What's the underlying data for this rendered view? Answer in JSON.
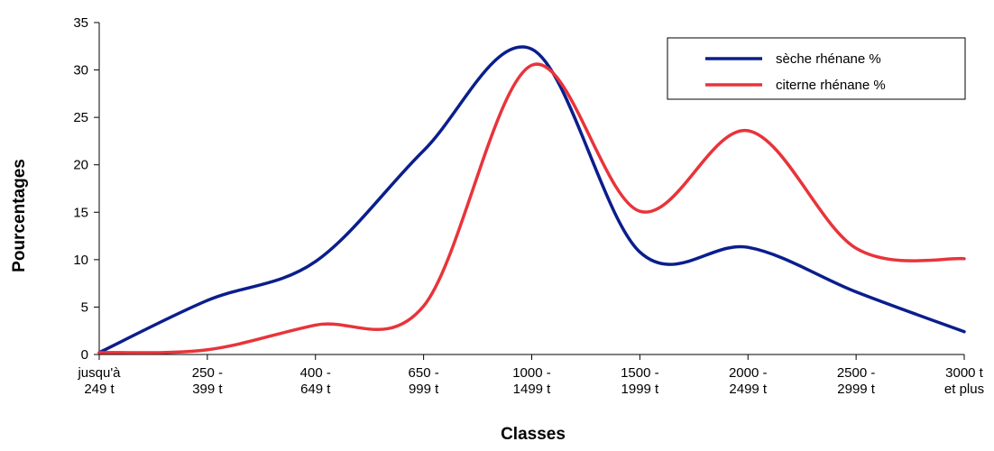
{
  "chart_data": {
    "type": "line",
    "xlabel": "Classes",
    "ylabel": "Pourcentages",
    "ylim": [
      0,
      35
    ],
    "yticks": [
      0,
      5,
      10,
      15,
      20,
      25,
      30,
      35
    ],
    "categories": [
      [
        "jusqu'à",
        "249 t"
      ],
      [
        "250 -",
        "399 t"
      ],
      [
        "400 -",
        "649 t"
      ],
      [
        "650 -",
        "999 t"
      ],
      [
        "1000 -",
        "1499 t"
      ],
      [
        "1500 -",
        "1999 t"
      ],
      [
        "2000 -",
        "2499 t"
      ],
      [
        "2500 -",
        "2999 t"
      ],
      [
        "3000 t",
        "et plus"
      ]
    ],
    "series": [
      {
        "name": "sèche rhénane %",
        "color": "#0a1e8c",
        "values": [
          0.2,
          5.7,
          9.8,
          21.5,
          32.2,
          10.8,
          11.3,
          6.6,
          2.4
        ]
      },
      {
        "name": "citerne rhénane %",
        "color": "#e8343a",
        "values": [
          0.2,
          0.5,
          3.1,
          5.1,
          30.5,
          15.1,
          23.6,
          11.2,
          10.1
        ]
      }
    ],
    "legend": "top-right",
    "grid": false
  }
}
